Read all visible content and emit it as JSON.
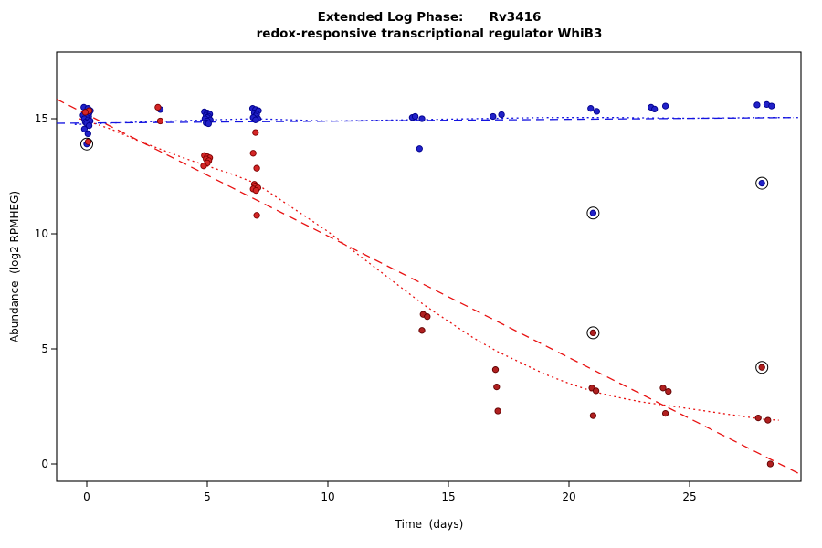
{
  "chart_data": {
    "type": "scatter",
    "title_line1": "Extended Log Phase:      Rv3416",
    "title_line2": "redox-responsive transcriptional regulator WhiB3",
    "xlabel": "Time  (days)",
    "ylabel": "Abundance  (log2 RPMHEG)",
    "xlim": [
      -1.25,
      29.5
    ],
    "ylim": [
      -0.7,
      17.8
    ],
    "xticks": [
      0,
      5,
      10,
      15,
      20,
      25
    ],
    "yticks": [
      0,
      5,
      10,
      15
    ],
    "grid": false,
    "legend": "none",
    "colors": {
      "blue_series": "#2121C8",
      "red_series": "#D42626",
      "dark_red_series": "#B02020",
      "blue_line": "#1414E0",
      "red_line": "#E81010",
      "outlier_ring": "#000000"
    },
    "series": [
      {
        "name": "blue-points",
        "color": "#2121C8",
        "stroke": "#00008B",
        "points": [
          [
            -0.12,
            15.5
          ],
          [
            0.05,
            15.45
          ],
          [
            0.15,
            15.35
          ],
          [
            -0.05,
            15.3
          ],
          [
            0.1,
            15.25
          ],
          [
            0,
            15.2
          ],
          [
            -0.15,
            15.15
          ],
          [
            0.08,
            15.1
          ],
          [
            0,
            15.05
          ],
          [
            -0.1,
            15.0
          ],
          [
            0.05,
            14.95
          ],
          [
            0.14,
            14.9
          ],
          [
            -0.06,
            14.85
          ],
          [
            0,
            14.8
          ],
          [
            0.1,
            14.7
          ],
          [
            -0.1,
            14.55
          ],
          [
            0.05,
            14.35
          ],
          [
            0,
            13.9
          ],
          [
            3.05,
            15.4
          ],
          [
            4.88,
            15.3
          ],
          [
            5.0,
            15.25
          ],
          [
            5.1,
            15.2
          ],
          [
            4.95,
            15.15
          ],
          [
            5.05,
            15.1
          ],
          [
            5.0,
            15.05
          ],
          [
            4.9,
            15.0
          ],
          [
            5.12,
            14.95
          ],
          [
            5.0,
            14.9
          ],
          [
            4.95,
            14.82
          ],
          [
            5.05,
            14.78
          ],
          [
            6.88,
            15.45
          ],
          [
            7.0,
            15.4
          ],
          [
            7.12,
            15.35
          ],
          [
            6.95,
            15.25
          ],
          [
            7.05,
            15.2
          ],
          [
            7.0,
            15.12
          ],
          [
            6.9,
            15.05
          ],
          [
            7.1,
            15.0
          ],
          [
            7.0,
            14.95
          ],
          [
            13.5,
            15.05
          ],
          [
            13.62,
            15.1
          ],
          [
            13.9,
            15.0
          ],
          [
            13.8,
            13.7
          ],
          [
            16.85,
            15.1
          ],
          [
            17.2,
            15.18
          ],
          [
            20.9,
            15.45
          ],
          [
            21.15,
            15.32
          ],
          [
            21,
            10.9
          ],
          [
            23.4,
            15.5
          ],
          [
            23.55,
            15.42
          ],
          [
            24.0,
            15.55
          ],
          [
            27.8,
            15.6
          ],
          [
            28.2,
            15.62
          ],
          [
            28.4,
            15.55
          ],
          [
            28,
            12.2
          ]
        ]
      },
      {
        "name": "red-points-early",
        "color": "#D42626",
        "stroke": "#7C0000",
        "points": [
          [
            0.1,
            15.35
          ],
          [
            -0.06,
            15.28
          ],
          [
            0.06,
            14.0
          ],
          [
            2.95,
            15.5
          ],
          [
            3.05,
            14.9
          ],
          [
            4.88,
            13.4
          ],
          [
            5.0,
            13.35
          ],
          [
            5.1,
            13.3
          ],
          [
            4.95,
            13.25
          ],
          [
            5.06,
            13.18
          ],
          [
            5.0,
            13.08
          ],
          [
            4.85,
            12.95
          ],
          [
            7.0,
            14.4
          ],
          [
            6.9,
            13.5
          ],
          [
            7.05,
            12.85
          ],
          [
            6.95,
            12.15
          ],
          [
            7.0,
            12.08
          ],
          [
            7.1,
            12.0
          ],
          [
            6.9,
            11.95
          ],
          [
            7.02,
            11.88
          ],
          [
            7.05,
            10.8
          ]
        ]
      },
      {
        "name": "red-points-late",
        "color": "#B02020",
        "stroke": "#5E0000",
        "points": [
          [
            13.95,
            6.5
          ],
          [
            14.12,
            6.4
          ],
          [
            13.9,
            5.8
          ],
          [
            16.95,
            4.1
          ],
          [
            17.0,
            3.35
          ],
          [
            17.05,
            2.3
          ],
          [
            20.95,
            3.3
          ],
          [
            21.12,
            3.18
          ],
          [
            21.0,
            2.1
          ],
          [
            21,
            5.7
          ],
          [
            23.9,
            3.3
          ],
          [
            24.12,
            3.15
          ],
          [
            24.0,
            2.2
          ],
          [
            27.85,
            2.0
          ],
          [
            28.25,
            1.9
          ],
          [
            28.35,
            0.0
          ],
          [
            28,
            4.2
          ]
        ]
      }
    ],
    "circled_points": [
      [
        0,
        13.9
      ],
      [
        21,
        10.9
      ],
      [
        28,
        12.2
      ],
      [
        21,
        5.7
      ],
      [
        28,
        4.2
      ]
    ],
    "lines": [
      {
        "name": "blue-dashed-fit",
        "color": "#1414E0",
        "dash": "9,6",
        "points": [
          [
            -1.25,
            14.8
          ],
          [
            29.5,
            15.05
          ]
        ]
      },
      {
        "name": "blue-dotted-fit",
        "color": "#1414E0",
        "dash": "2,3.5",
        "points": [
          [
            -0.5,
            14.75
          ],
          [
            2,
            14.85
          ],
          [
            5,
            14.95
          ],
          [
            7,
            15.0
          ],
          [
            10,
            14.9
          ],
          [
            13,
            14.95
          ],
          [
            16,
            15.0
          ],
          [
            19,
            15.05
          ],
          [
            22,
            15.05
          ],
          [
            25,
            15.02
          ],
          [
            28,
            15.05
          ],
          [
            29.3,
            15.05
          ]
        ]
      },
      {
        "name": "red-dashed-fit",
        "color": "#E81010",
        "dash": "9,6",
        "points": [
          [
            -1.25,
            15.85
          ],
          [
            29.5,
            -0.4
          ]
        ]
      },
      {
        "name": "red-dotted-fit",
        "color": "#E81010",
        "dash": "2,3.5",
        "points": [
          [
            -0.3,
            15.0
          ],
          [
            1,
            14.55
          ],
          [
            2,
            14.1
          ],
          [
            3,
            13.7
          ],
          [
            4,
            13.3
          ],
          [
            5,
            12.95
          ],
          [
            6,
            12.6
          ],
          [
            7,
            12.2
          ],
          [
            8,
            11.5
          ],
          [
            9,
            10.8
          ],
          [
            10,
            10.1
          ],
          [
            11,
            9.3
          ],
          [
            12,
            8.5
          ],
          [
            13,
            7.7
          ],
          [
            14,
            6.9
          ],
          [
            15,
            6.2
          ],
          [
            16,
            5.5
          ],
          [
            17,
            4.9
          ],
          [
            18,
            4.4
          ],
          [
            19,
            3.9
          ],
          [
            20,
            3.5
          ],
          [
            21,
            3.15
          ],
          [
            22,
            2.9
          ],
          [
            23,
            2.7
          ],
          [
            24,
            2.55
          ],
          [
            25,
            2.4
          ],
          [
            26,
            2.25
          ],
          [
            27,
            2.1
          ],
          [
            28,
            1.95
          ],
          [
            28.7,
            1.9
          ]
        ]
      }
    ]
  }
}
